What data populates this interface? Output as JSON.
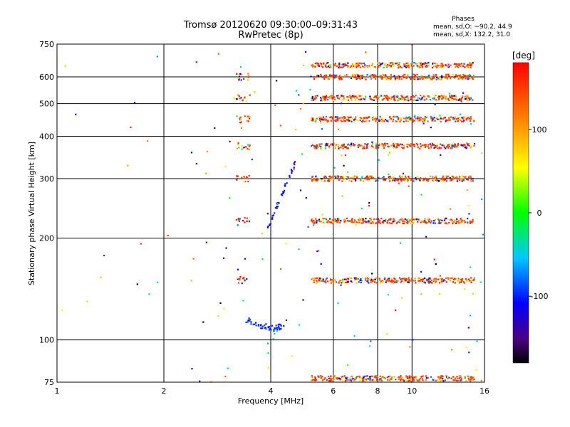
{
  "chart_data": {
    "type": "scatter",
    "title": "Tromsø 20120620 09:30:00–09:31:43",
    "subtitle": "RwPretec (8p)",
    "xlabel": "Frequency [MHz]",
    "ylabel": "Stationary phase Virtual Height [km]",
    "x_scale": "log",
    "y_scale": "log",
    "xlim": [
      1,
      16
    ],
    "ylim": [
      75,
      750
    ],
    "x_ticks": [
      1,
      2,
      4,
      6,
      8,
      10,
      16
    ],
    "y_ticks": [
      75,
      100,
      200,
      300,
      400,
      500,
      600,
      750
    ],
    "grid": true,
    "phase_stats": {
      "title": "Phases",
      "line1": "mean, sd,O: −90.2, 44.9",
      "line2": "mean, sd,X: 132.2, 31.0"
    },
    "colorbar": {
      "label": "[deg]",
      "range": [
        -180,
        180
      ],
      "ticks": [
        100,
        0,
        -100
      ],
      "colormap": "rainbow: black-purple-blue-cyan-green-yellow-orange-red"
    },
    "series": [
      {
        "type": "band",
        "x_range": [
          5.2,
          15.0
        ],
        "y": 650,
        "phase": 150
      },
      {
        "type": "band",
        "x_range": [
          5.2,
          15.0
        ],
        "y": 600,
        "phase": 150
      },
      {
        "type": "band",
        "x_range": [
          5.2,
          15.0
        ],
        "y": 520,
        "phase": 150
      },
      {
        "type": "band",
        "x_range": [
          5.2,
          15.0
        ],
        "y": 450,
        "phase": 150
      },
      {
        "type": "band",
        "x_range": [
          5.2,
          15.0
        ],
        "y": 375,
        "phase": 150
      },
      {
        "type": "band",
        "x_range": [
          5.2,
          15.0
        ],
        "y": 300,
        "phase": 150
      },
      {
        "type": "band",
        "x_range": [
          5.2,
          15.0
        ],
        "y": 225,
        "phase": 150
      },
      {
        "type": "band",
        "x_range": [
          5.2,
          15.0
        ],
        "y": 150,
        "phase": 150
      },
      {
        "type": "band",
        "x_range": [
          5.2,
          15.0
        ],
        "y": 77,
        "phase": 150
      },
      {
        "type": "cluster",
        "x_range": [
          3.2,
          3.5
        ],
        "y_values": [
          600,
          520,
          450,
          375,
          300,
          225,
          150
        ],
        "phase": 160
      },
      {
        "type": "trace",
        "name": "",
        "x": [
          3.4,
          3.6,
          3.8,
          4.0,
          4.2,
          4.4
        ],
        "y": [
          115,
          112,
          110,
          108,
          109,
          110
        ],
        "phase": -100
      },
      {
        "type": "trace",
        "name": "",
        "x": [
          3.9,
          4.1,
          4.3,
          4.5,
          4.7
        ],
        "y": [
          210,
          240,
          270,
          300,
          340
        ],
        "phase": -110
      }
    ]
  }
}
